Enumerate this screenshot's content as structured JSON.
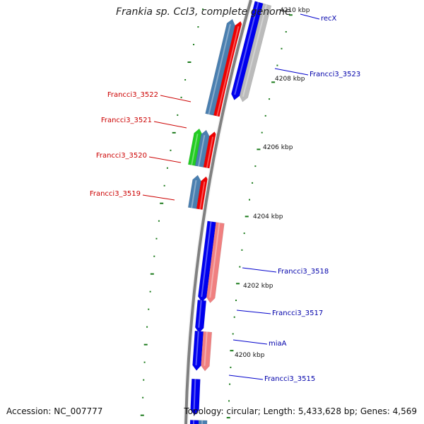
{
  "title": "Frankia sp. CcI3, complete genome",
  "accession": "Accession: NC_007777",
  "topology": "Topology: circular; Length: 5,433,628 bp; Genes: 4,569",
  "colors": {
    "backbone": "#808080",
    "tick": "#1a7a1a",
    "scale_label": "#111111",
    "label_forward": "#0000aa",
    "label_reverse": "#cc0000",
    "label_line_forward": "#0000cc",
    "label_line_reverse": "#cc0000"
  },
  "scale_labels": [
    "4200 kbp",
    "4202 kbp",
    "4204 kbp",
    "4206 kbp",
    "4208 kbp",
    "4210 kbp"
  ],
  "gene_labels": [
    {
      "text": "recX",
      "strand": "forward"
    },
    {
      "text": "Francci3_3523",
      "strand": "forward"
    },
    {
      "text": "Francci3_3522",
      "strand": "reverse"
    },
    {
      "text": "Francci3_3521",
      "strand": "reverse"
    },
    {
      "text": "Francci3_3520",
      "strand": "reverse"
    },
    {
      "text": "Francci3_3519",
      "strand": "reverse"
    },
    {
      "text": "Francci3_3518",
      "strand": "forward"
    },
    {
      "text": "Francci3_3517",
      "strand": "forward"
    },
    {
      "text": "miaA",
      "strand": "forward"
    },
    {
      "text": "Francci3_3515",
      "strand": "forward"
    }
  ],
  "features": [
    {
      "strand": "forward",
      "track": "cds",
      "color": "#0000ee",
      "start": 4212.3,
      "end": 4207.4
    },
    {
      "strand": "forward",
      "track": "gene",
      "color": "#bbbbbb",
      "start": 4212.3,
      "end": 4207.4
    },
    {
      "strand": "reverse",
      "track": "gene",
      "color": "#4a7fb0",
      "start": 4209.3,
      "end": 4206.7
    },
    {
      "strand": "reverse",
      "track": "cds",
      "color": "#ee0000",
      "start": 4209.3,
      "end": 4206.7
    },
    {
      "strand": "reverse",
      "track": "extra",
      "color": "#22cc22",
      "start": 4206.1,
      "end": 4205.2
    },
    {
      "strand": "reverse",
      "track": "gene",
      "color": "#4a7fb0",
      "start": 4206.1,
      "end": 4205.2
    },
    {
      "strand": "reverse",
      "track": "cds",
      "color": "#ee0000",
      "start": 4206.1,
      "end": 4205.2
    },
    {
      "strand": "reverse",
      "track": "gene",
      "color": "#4a7fb0",
      "start": 4204.8,
      "end": 4204.0
    },
    {
      "strand": "reverse",
      "track": "cds",
      "color": "#ee0000",
      "start": 4204.8,
      "end": 4204.0
    },
    {
      "strand": "forward",
      "track": "cds",
      "color": "#0000ee",
      "start": 4203.7,
      "end": 4201.5
    },
    {
      "strand": "forward",
      "track": "gene",
      "color": "#f08080",
      "start": 4203.7,
      "end": 4201.5
    },
    {
      "strand": "forward",
      "track": "cds",
      "color": "#0000ee",
      "start": 4201.4,
      "end": 4200.6
    },
    {
      "strand": "forward",
      "track": "cds",
      "color": "#0000ee",
      "start": 4200.5,
      "end": 4199.5
    },
    {
      "strand": "forward",
      "track": "gene",
      "color": "#f08080",
      "start": 4200.5,
      "end": 4199.5
    },
    {
      "strand": "forward",
      "track": "cds",
      "color": "#0000ee",
      "start": 4199.1,
      "end": 4198.2
    },
    {
      "strand": "forward",
      "track": "cds",
      "color": "#0000ee",
      "start": 4197.9,
      "end": 4196.5
    },
    {
      "strand": "forward",
      "track": "gene",
      "color": "#4a7fb0",
      "start": 4197.9,
      "end": 4196.5
    }
  ]
}
